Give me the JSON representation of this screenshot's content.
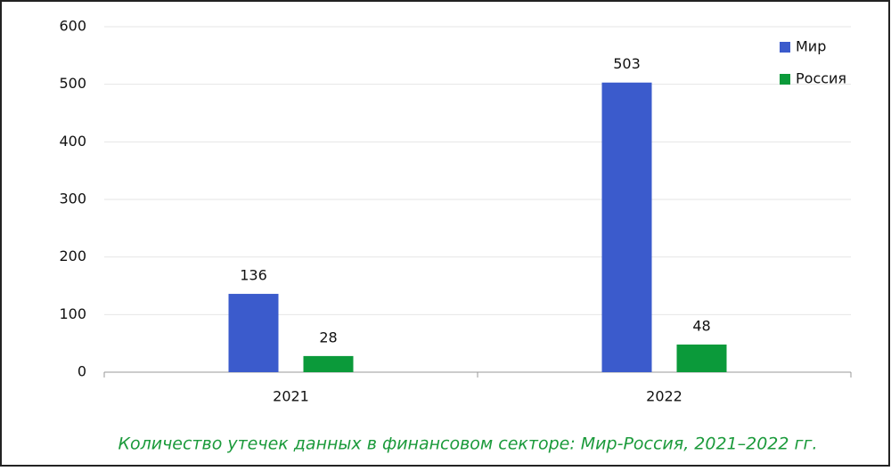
{
  "chart_data": {
    "type": "bar",
    "caption": "Количество утечек данных в финансовом секторе: Мир-Россия, 2021–2022 гг.",
    "categories": [
      "2021",
      "2022"
    ],
    "series": [
      {
        "name": "Мир",
        "color": "#3b5bcc",
        "values": [
          136,
          503
        ]
      },
      {
        "name": "Россия",
        "color": "#0b9a3a",
        "values": [
          28,
          48
        ]
      }
    ],
    "ylim": [
      0,
      600
    ],
    "yticks": [
      0,
      100,
      200,
      300,
      400,
      500,
      600
    ],
    "grid": true,
    "legend": "top-right"
  }
}
